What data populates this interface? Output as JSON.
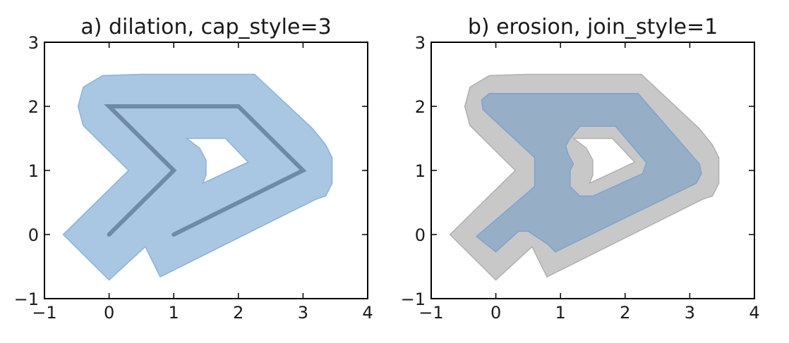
{
  "chart_data": [
    {
      "type": "polygon",
      "title": "a) dilation, cap_style=3",
      "xlim": [
        -1,
        4
      ],
      "ylim": [
        -1,
        3
      ],
      "xticks": [
        "−1",
        "0",
        "1",
        "2",
        "3",
        "4"
      ],
      "yticks": [
        "−1",
        "0",
        "1",
        "2",
        "3"
      ],
      "grid": false,
      "colors": {
        "fill": "#a9c6e2",
        "fill_edge": "#8cb3da",
        "line": "#6f8aa6"
      },
      "line": {
        "x": [
          0,
          1,
          0,
          2,
          3,
          1
        ],
        "y": [
          0,
          1,
          2,
          2,
          1,
          0
        ]
      },
      "shape": {
        "outer": [
          [
            0,
            -0.71
          ],
          [
            0.56,
            -0.19
          ],
          [
            0.79,
            -0.66
          ],
          [
            3.2,
            0.55
          ],
          [
            3.35,
            0.6
          ],
          [
            3.45,
            0.8
          ],
          [
            3.45,
            1.2
          ],
          [
            3.35,
            1.4
          ],
          [
            3.15,
            1.65
          ],
          [
            2.25,
            2.5
          ],
          [
            0.5,
            2.5
          ],
          [
            -0.1,
            2.48
          ],
          [
            -0.4,
            2.3
          ],
          [
            -0.48,
            2.0
          ],
          [
            -0.4,
            1.7
          ],
          [
            0.3,
            1.0
          ],
          [
            -0.71,
            0.0
          ]
        ],
        "hole": [
          [
            1.2,
            1.5
          ],
          [
            1.8,
            1.5
          ],
          [
            2.15,
            1.13
          ],
          [
            1.45,
            0.8
          ],
          [
            1.5,
            0.93
          ],
          [
            1.5,
            1.16
          ],
          [
            1.4,
            1.35
          ]
        ]
      }
    },
    {
      "type": "polygon",
      "title": "b) erosion, join_style=1",
      "xlim": [
        -1,
        4
      ],
      "ylim": [
        -1,
        3
      ],
      "xticks": [
        "−1",
        "0",
        "1",
        "2",
        "3",
        "4"
      ],
      "yticks": [
        "−1",
        "0",
        "1",
        "2",
        "3"
      ],
      "grid": false,
      "colors": {
        "base_fill": "#c8c8c8",
        "base_edge": "#b0b0b0",
        "eroded_fill": "#97aec7",
        "eroded_edge": "#7fa3cc"
      },
      "shape": {
        "outer": [
          [
            0,
            -0.71
          ],
          [
            0.56,
            -0.19
          ],
          [
            0.79,
            -0.66
          ],
          [
            3.2,
            0.55
          ],
          [
            3.35,
            0.6
          ],
          [
            3.45,
            0.8
          ],
          [
            3.45,
            1.2
          ],
          [
            3.35,
            1.4
          ],
          [
            3.15,
            1.65
          ],
          [
            2.25,
            2.5
          ],
          [
            0.5,
            2.5
          ],
          [
            -0.1,
            2.48
          ],
          [
            -0.4,
            2.3
          ],
          [
            -0.48,
            2.0
          ],
          [
            -0.4,
            1.7
          ],
          [
            0.3,
            1.0
          ],
          [
            -0.71,
            0.0
          ]
        ],
        "hole": [
          [
            1.2,
            1.5
          ],
          [
            1.8,
            1.5
          ],
          [
            2.15,
            1.13
          ],
          [
            1.45,
            0.8
          ],
          [
            1.5,
            0.93
          ],
          [
            1.5,
            1.16
          ],
          [
            1.4,
            1.35
          ]
        ]
      },
      "eroded": {
        "outer": [
          [
            0,
            -0.27
          ],
          [
            0.35,
            0.05
          ],
          [
            0.5,
            0.05
          ],
          [
            0.65,
            -0.05
          ],
          [
            0.8,
            -0.15
          ],
          [
            0.92,
            -0.27
          ],
          [
            3.1,
            0.8
          ],
          [
            3.18,
            0.95
          ],
          [
            3.15,
            1.1
          ],
          [
            2.2,
            2.2
          ],
          [
            -0.1,
            2.2
          ],
          [
            -0.22,
            2.1
          ],
          [
            -0.2,
            1.95
          ],
          [
            0.6,
            1.2
          ],
          [
            0.6,
            0.75
          ],
          [
            -0.3,
            -0.03
          ]
        ],
        "hole": [
          [
            1.15,
            1.5
          ],
          [
            1.3,
            1.69
          ],
          [
            1.85,
            1.69
          ],
          [
            2.33,
            1.12
          ],
          [
            2.27,
            0.95
          ],
          [
            1.5,
            0.6
          ],
          [
            1.3,
            0.6
          ],
          [
            1.15,
            0.75
          ],
          [
            1.15,
            1.0
          ],
          [
            1.2,
            1.1
          ],
          [
            1.12,
            1.25
          ],
          [
            1.08,
            1.38
          ]
        ]
      }
    }
  ]
}
